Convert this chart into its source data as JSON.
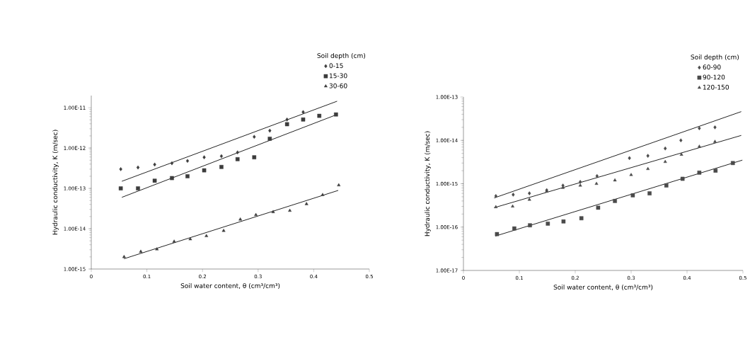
{
  "chart_data": [
    {
      "type": "scatter",
      "xlabel": "Soil water content, θ (cm³/cm³)",
      "ylabel": "Hydraulic conductivity, K (m/sec)",
      "legend_title": "Soil depth (cm)",
      "legend": "top right",
      "log": "y",
      "grid": false,
      "xlim": [
        0,
        0.5
      ],
      "ylim": [
        1e-15,
        2e-11
      ],
      "xticks": [
        0,
        0.1,
        0.2,
        0.3,
        0.4,
        0.5
      ],
      "yticks": [
        {
          "value": 1e-15,
          "label": "1.00E-15"
        },
        {
          "value": 1e-14,
          "label": "1.00E-14"
        },
        {
          "value": 1e-13,
          "label": "1.00E-13"
        },
        {
          "value": 1e-12,
          "label": "1.00E-12"
        },
        {
          "value": 1e-11,
          "label": "1.00E-11"
        }
      ],
      "series": [
        {
          "name": "0-15",
          "color": "#3c3c3c",
          "marker": "diamond",
          "x": [
            0.053,
            0.084,
            0.114,
            0.145,
            0.173,
            0.203,
            0.234,
            0.263,
            0.293,
            0.321,
            0.352,
            0.381
          ],
          "values": [
            3e-13,
            3.3e-13,
            3.9e-13,
            4.2e-13,
            4.8e-13,
            5.9e-13,
            6.3e-13,
            7.8e-13,
            1.9e-12,
            2.7e-12,
            5.1e-12,
            7.8e-12
          ]
        },
        {
          "name": "15-30",
          "color": "#3c3c3c",
          "marker": "square",
          "x": [
            0.053,
            0.084,
            0.114,
            0.145,
            0.173,
            0.203,
            0.234,
            0.263,
            0.293,
            0.321,
            0.352,
            0.381,
            0.41,
            0.44
          ],
          "values": [
            1e-13,
            1e-13,
            1.55e-13,
            1.8e-13,
            2e-13,
            2.8e-13,
            3.4e-13,
            5.3e-13,
            5.9e-13,
            1.7e-12,
            3.9e-12,
            5.1e-12,
            6.3e-12,
            6.8e-12
          ]
        },
        {
          "name": "30-60",
          "color": "#3c3c3c",
          "marker": "triangle",
          "x": [
            0.059,
            0.089,
            0.118,
            0.149,
            0.178,
            0.207,
            0.238,
            0.268,
            0.296,
            0.327,
            0.357,
            0.387,
            0.416,
            0.445
          ],
          "values": [
            2e-15,
            2.7e-15,
            3.1e-15,
            4.8e-15,
            5.5e-15,
            6.6e-15,
            8.9e-15,
            1.7e-14,
            2.2e-14,
            2.6e-14,
            2.8e-14,
            4.1e-14,
            6.9e-14,
            1.2e-13
          ]
        },
        {
          "type": "line",
          "color": "#222222",
          "marker": "none",
          "x": [
            0.055,
            0.442
          ],
          "values": [
            1.5e-13,
            1.45e-11
          ]
        },
        {
          "type": "line",
          "color": "#222222",
          "marker": "none",
          "x": [
            0.055,
            0.442
          ],
          "values": [
            6e-14,
            6.8e-12
          ]
        },
        {
          "type": "line",
          "color": "#222222",
          "marker": "none",
          "x": [
            0.059,
            0.444
          ],
          "values": [
            1.8e-15,
            8.9e-14
          ]
        }
      ]
    },
    {
      "type": "scatter",
      "xlabel": "Soil water content, θ (cm³/cm³)",
      "ylabel": "Hydraulic conductivity, K (m/sec)",
      "legend_title": "Soil depth (cm)",
      "legend": "top right",
      "log": "y",
      "grid": false,
      "xlim": [
        0,
        0.5
      ],
      "ylim": [
        1e-17,
        1e-13
      ],
      "xticks": [
        0,
        0.1,
        0.2,
        0.3,
        0.4,
        0.5
      ],
      "yticks": [
        {
          "value": 1e-17,
          "label": "1.00E-17"
        },
        {
          "value": 1e-16,
          "label": "1.00E-16"
        },
        {
          "value": 1e-15,
          "label": "1.00E-15"
        },
        {
          "value": 1e-14,
          "label": "1.00E-14"
        },
        {
          "value": 1e-13,
          "label": "1.00E-13"
        }
      ],
      "series": [
        {
          "name": "60-90",
          "color": "#4a4a4a",
          "marker": "diamond",
          "x": [
            0.058,
            0.089,
            0.118,
            0.149,
            0.178,
            0.209,
            0.239,
            0.297,
            0.33,
            0.361,
            0.389,
            0.422,
            0.45
          ],
          "values": [
            5.2e-16,
            5.6e-16,
            6e-16,
            7.1e-16,
            9.1e-16,
            1.1e-15,
            1.5e-15,
            3.9e-15,
            4.4e-15,
            6.5e-15,
            1e-14,
            1.9e-14,
            2e-14
          ]
        },
        {
          "name": "90-120",
          "color": "#4a4a4a",
          "marker": "square",
          "x": [
            0.06,
            0.091,
            0.119,
            0.151,
            0.179,
            0.211,
            0.241,
            0.271,
            0.303,
            0.333,
            0.363,
            0.392,
            0.422,
            0.451,
            0.482
          ],
          "values": [
            6.9e-17,
            9.3e-17,
            1.1e-16,
            1.2e-16,
            1.35e-16,
            1.6e-16,
            2.8e-16,
            4e-16,
            5.4e-16,
            6e-16,
            9.1e-16,
            1.3e-15,
            1.8e-15,
            2e-15,
            3e-15
          ]
        },
        {
          "name": "120-150",
          "color": "#4a4a4a",
          "marker": "triangle",
          "x": [
            0.058,
            0.088,
            0.118,
            0.149,
            0.178,
            0.209,
            0.238,
            0.271,
            0.3,
            0.33,
            0.361,
            0.39,
            0.422,
            0.45
          ],
          "values": [
            2.9e-16,
            3e-16,
            4.3e-16,
            6.7e-16,
            8.1e-16,
            9.1e-16,
            1e-15,
            1.2e-15,
            1.6e-15,
            2.2e-15,
            3.2e-15,
            4.7e-15,
            7.2e-15,
            9.3e-15
          ]
        },
        {
          "type": "line",
          "color": "#222222",
          "marker": "none",
          "x": [
            0.055,
            0.497
          ],
          "values": [
            4.7e-16,
            4.6e-14
          ]
        },
        {
          "type": "line",
          "color": "#222222",
          "marker": "none",
          "x": [
            0.055,
            0.497
          ],
          "values": [
            2.8e-16,
            1.3e-14
          ]
        },
        {
          "type": "line",
          "color": "#222222",
          "marker": "none",
          "x": [
            0.057,
            0.499
          ],
          "values": [
            6.2e-17,
            3.5e-15
          ]
        }
      ]
    }
  ]
}
